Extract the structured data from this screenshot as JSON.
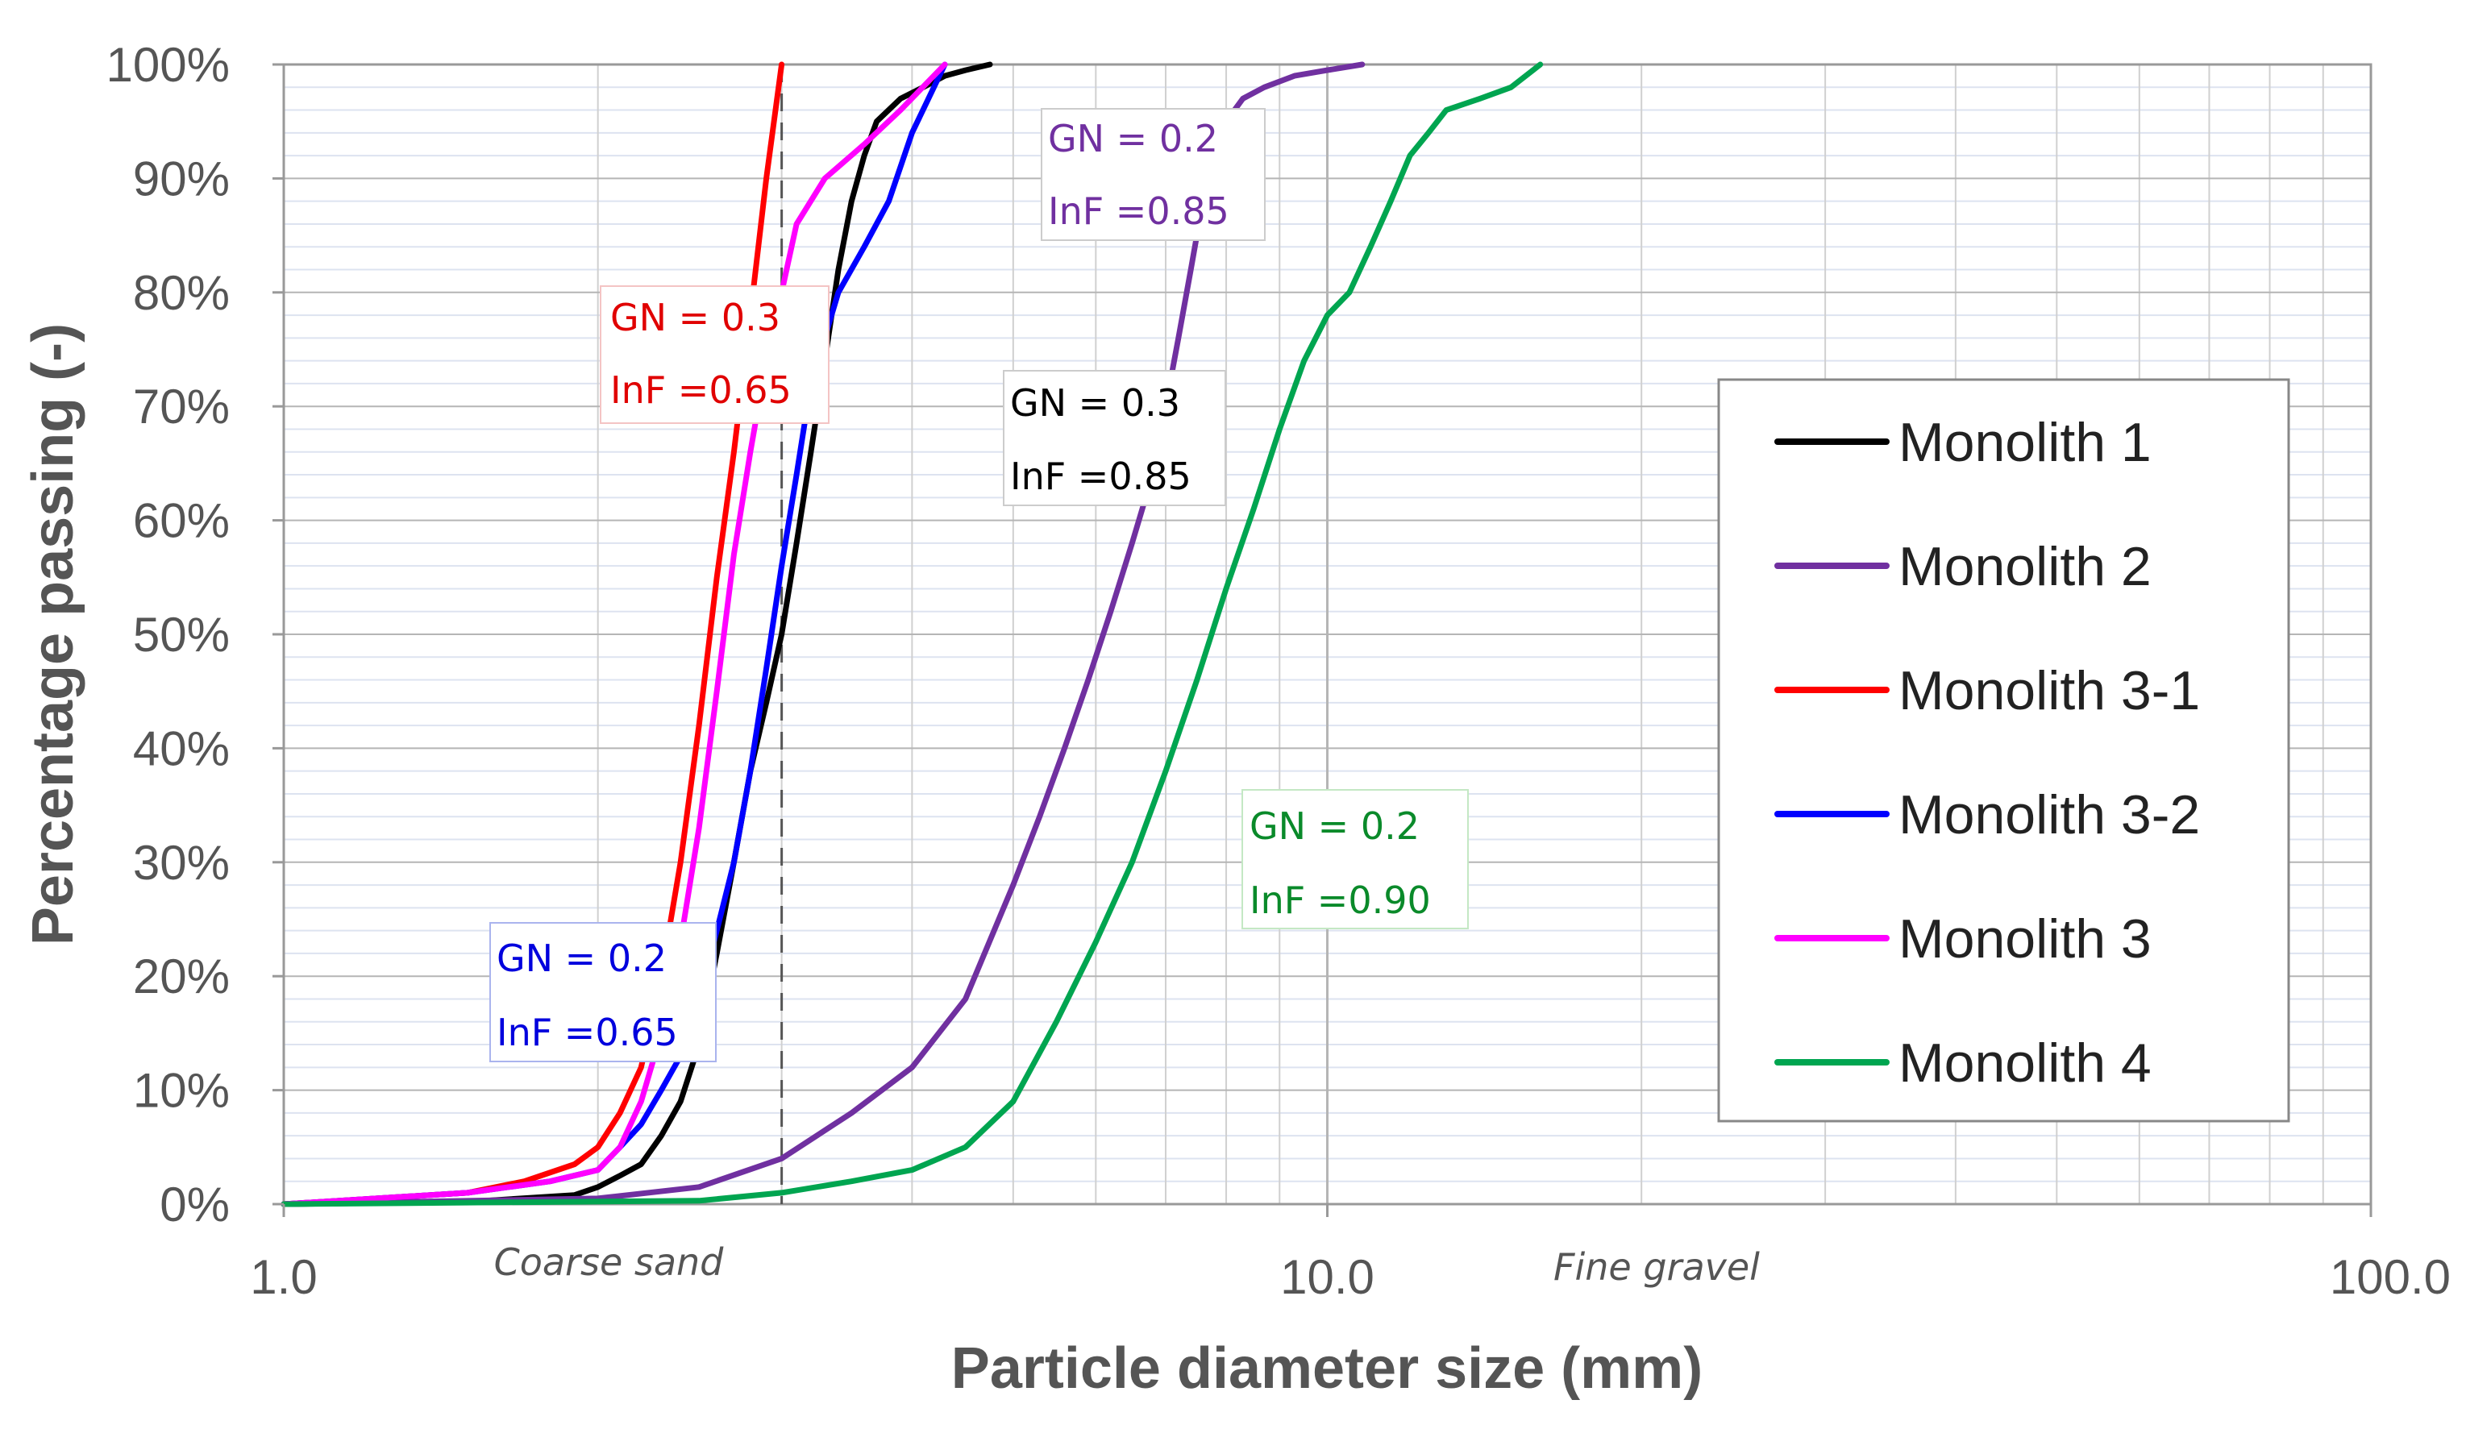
{
  "chart_data": {
    "type": "line",
    "xscale": "log",
    "xlim": [
      1.0,
      100.0
    ],
    "ylim": [
      0,
      100
    ],
    "xlabel": "Particle diameter size (mm)",
    "ylabel": "Percentage passing (-)",
    "x_tick_labels": [
      "1.0",
      "10.0",
      "100.0"
    ],
    "y_tick_labels": [
      "0%",
      "10%",
      "20%",
      "30%",
      "40%",
      "50%",
      "60%",
      "70%",
      "80%",
      "90%",
      "100%"
    ],
    "grid": true,
    "legend_position": "right",
    "region_labels": [
      "Coarse sand",
      "Fine gravel"
    ],
    "reference_line_x": 3.0,
    "series": [
      {
        "name": "Monolith 1",
        "color": "#000000",
        "x": [
          1.0,
          1.5,
          1.9,
          2.0,
          2.1,
          2.2,
          2.3,
          2.4,
          2.5,
          2.6,
          2.7,
          2.8,
          2.9,
          3.0,
          3.1,
          3.2,
          3.3,
          3.4,
          3.5,
          3.6,
          3.7,
          3.9,
          4.1,
          4.3,
          4.5,
          4.75
        ],
        "y": [
          0,
          0.2,
          0.8,
          1.5,
          2.5,
          3.5,
          6,
          9,
          14,
          22,
          30,
          38,
          44,
          50,
          58,
          66,
          74,
          82,
          88,
          92,
          95,
          97,
          98,
          99,
          99.5,
          100
        ]
      },
      {
        "name": "Monolith 2",
        "color": "#7030a0",
        "x": [
          1.0,
          2.0,
          2.5,
          3.0,
          3.5,
          4.0,
          4.5,
          5.0,
          5.3,
          5.6,
          5.9,
          6.2,
          6.5,
          6.8,
          7.0,
          7.2,
          7.4,
          7.6,
          7.8,
          8.0,
          8.3,
          8.7,
          9.3,
          10.0,
          10.8
        ],
        "y": [
          0,
          0.5,
          1.5,
          4,
          8,
          12,
          18,
          28,
          34,
          40,
          46,
          52,
          58,
          64,
          70,
          76,
          82,
          88,
          92,
          95,
          97,
          98,
          99,
          99.5,
          100
        ]
      },
      {
        "name": "Monolith 3-1",
        "color": "#ff0000",
        "x": [
          1.0,
          1.5,
          1.7,
          1.9,
          2.0,
          2.1,
          2.2,
          2.3,
          2.4,
          2.5,
          2.6,
          2.7,
          2.8,
          2.9,
          3.0
        ],
        "y": [
          0,
          1,
          2,
          3.5,
          5,
          8,
          12,
          20,
          30,
          42,
          55,
          66,
          78,
          90,
          100
        ]
      },
      {
        "name": "Monolith 3-2",
        "color": "#0000ff",
        "x": [
          1.0,
          1.5,
          1.8,
          2.0,
          2.1,
          2.2,
          2.3,
          2.4,
          2.5,
          2.6,
          2.7,
          2.8,
          2.9,
          3.0,
          3.1,
          3.2,
          3.4,
          3.6,
          3.8,
          4.0,
          4.3
        ],
        "y": [
          0,
          1,
          2,
          3,
          5,
          7,
          10,
          13,
          18,
          24,
          30,
          38,
          47,
          56,
          64,
          72,
          80,
          84,
          88,
          94,
          100
        ]
      },
      {
        "name": "Monolith 3",
        "color": "#ff00ff",
        "x": [
          1.0,
          1.5,
          1.8,
          2.0,
          2.1,
          2.2,
          2.3,
          2.4,
          2.5,
          2.6,
          2.7,
          2.8,
          2.9,
          3.0,
          3.1,
          3.3,
          3.6,
          3.9,
          4.3
        ],
        "y": [
          0,
          1,
          2,
          3,
          5,
          9,
          15,
          23,
          33,
          45,
          57,
          66,
          74,
          80,
          86,
          90,
          93,
          96,
          100
        ]
      },
      {
        "name": "Monolith 4",
        "color": "#00a550",
        "x": [
          1.0,
          2.5,
          3.0,
          3.5,
          4.0,
          4.5,
          5.0,
          5.5,
          6.0,
          6.5,
          7.0,
          7.5,
          8.0,
          8.5,
          9.0,
          9.5,
          10.0,
          10.5,
          11.0,
          11.5,
          12.0,
          12.5,
          13.0,
          14.0,
          15.0,
          16.0
        ],
        "y": [
          0,
          0.3,
          1,
          2,
          3,
          5,
          9,
          16,
          23,
          30,
          38,
          46,
          54,
          61,
          68,
          74,
          78,
          80,
          84,
          88,
          92,
          94,
          96,
          97,
          98,
          100
        ]
      }
    ],
    "annotations": [
      {
        "gn": "GN = 0.3",
        "inf": "InF =0.65",
        "color": "#e00000"
      },
      {
        "gn": "GN = 0.2",
        "inf": "InF =0.85",
        "color": "#7030a0"
      },
      {
        "gn": "GN = 0.3",
        "inf": "InF =0.85",
        "color": "#000000"
      },
      {
        "gn": "GN = 0.2",
        "inf": "InF =0.90",
        "color": "#0a8a2a"
      },
      {
        "gn": "GN = 0.2",
        "inf": "InF =0.65",
        "color": "#0000dd"
      }
    ]
  }
}
